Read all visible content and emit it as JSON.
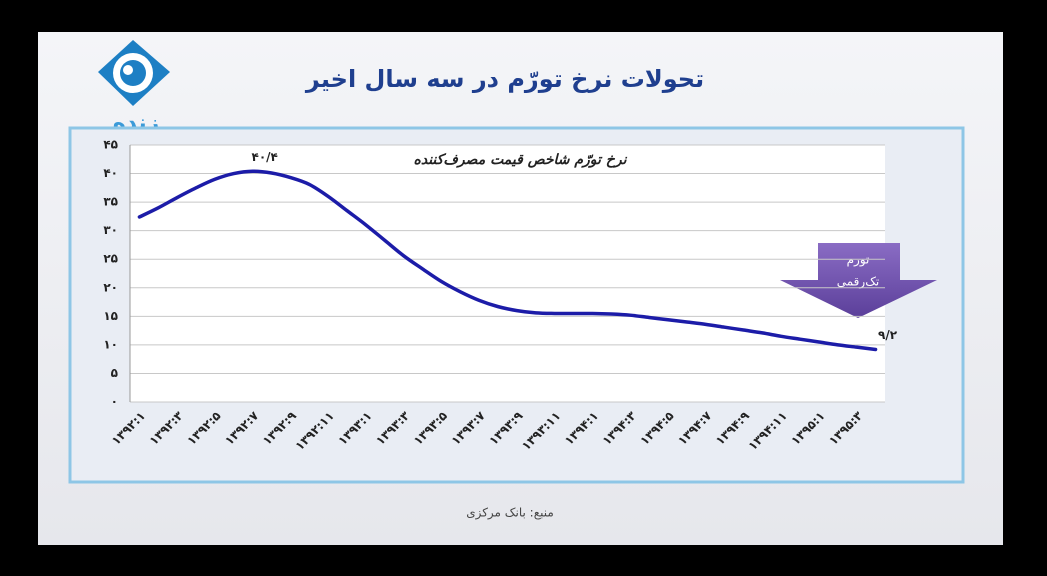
{
  "title": "تحولات نرخ تورّم در سه سال اخیر",
  "logo_text": "زنده",
  "source": "منبع: بانک مرکزی",
  "chart_data": {
    "type": "line",
    "title": "نرخ تورّم شاخص قیمت مصرف‌کننده",
    "categories": [
      "۱۳۹۲:۱",
      null,
      "۱۳۹۲:۳",
      null,
      "۱۳۹۲:۵",
      null,
      "۱۳۹۲:۷",
      null,
      "۱۳۹۲:۹",
      null,
      "۱۳۹۲:۱۱",
      null,
      "۱۳۹۳:۱",
      null,
      "۱۳۹۳:۳",
      null,
      "۱۳۹۳:۵",
      null,
      "۱۳۹۳:۷",
      null,
      "۱۳۹۳:۹",
      null,
      "۱۳۹۳:۱۱",
      null,
      "۱۳۹۴:۱",
      null,
      "۱۳۹۴:۳",
      null,
      "۱۳۹۴:۵",
      null,
      "۱۳۹۴:۷",
      null,
      "۱۳۹۴:۹",
      null,
      "۱۳۹۴:۱۱",
      null,
      "۱۳۹۵:۱",
      null,
      "۱۳۹۵:۳",
      null
    ],
    "values": [
      32.4,
      34.0,
      35.8,
      37.5,
      39.0,
      40.0,
      40.4,
      40.1,
      39.3,
      38.1,
      36.0,
      33.5,
      31.0,
      28.3,
      25.6,
      23.3,
      21.1,
      19.3,
      17.8,
      16.7,
      16.0,
      15.6,
      15.5,
      15.5,
      15.5,
      15.4,
      15.2,
      14.8,
      14.4,
      14.0,
      13.6,
      13.1,
      12.6,
      12.1,
      11.5,
      11.0,
      10.5,
      10.0,
      9.6,
      9.2
    ],
    "value_labels": [
      null,
      null,
      null,
      null,
      null,
      null,
      "۴۰/۴",
      null,
      null,
      null,
      null,
      null,
      null,
      null,
      null,
      null,
      null,
      null,
      null,
      null,
      null,
      null,
      null,
      null,
      null,
      null,
      null,
      null,
      null,
      null,
      null,
      null,
      null,
      null,
      null,
      null,
      null,
      null,
      null,
      "۹/۲"
    ],
    "color": "#1c1ca8",
    "ylim": [
      0,
      45
    ],
    "yticks": [
      {
        "value": 0,
        "label": "۰"
      },
      {
        "value": 5,
        "label": "۵"
      },
      {
        "value": 10,
        "label": "۱۰"
      },
      {
        "value": 15,
        "label": "۱۵"
      },
      {
        "value": 20,
        "label": "۲۰"
      },
      {
        "value": 25,
        "label": "۲۵"
      },
      {
        "value": 30,
        "label": "۳۰"
      },
      {
        "value": 35,
        "label": "۳۵"
      },
      {
        "value": 40,
        "label": "۴۰"
      },
      {
        "value": 45,
        "label": "۴۵"
      }
    ],
    "grid": true,
    "annotation": [
      "تورم",
      "تک‌رقمی"
    ]
  }
}
